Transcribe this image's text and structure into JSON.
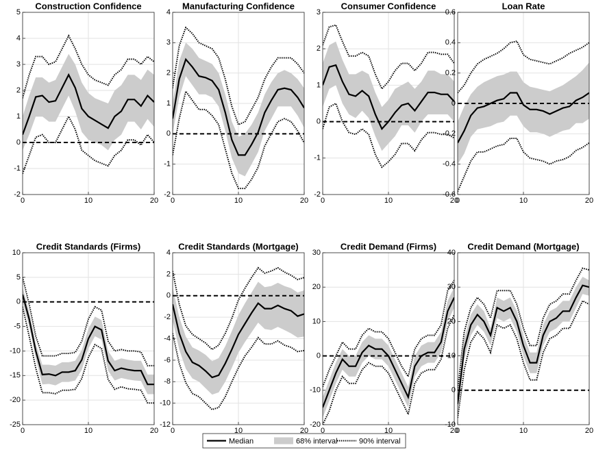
{
  "chart_data": [
    {
      "type": "line",
      "title": "Construction Confidence",
      "x": [
        0,
        1,
        2,
        3,
        4,
        5,
        6,
        7,
        8,
        9,
        10,
        11,
        12,
        13,
        14,
        15,
        16,
        17,
        18,
        19,
        20
      ],
      "xlim": [
        0,
        20
      ],
      "xticks": [
        0,
        10,
        20
      ],
      "ylim": [
        -2,
        5
      ],
      "yticks": [
        -2,
        -1,
        0,
        1,
        2,
        3,
        4,
        5
      ],
      "grid": true,
      "zero_line": 0,
      "median": [
        0.3,
        1.0,
        1.75,
        1.8,
        1.55,
        1.6,
        2.1,
        2.6,
        2.1,
        1.3,
        1.0,
        0.85,
        0.7,
        0.55,
        1.0,
        1.2,
        1.65,
        1.65,
        1.4,
        1.8,
        1.55
      ],
      "band68": {
        "lower": [
          -0.3,
          0.3,
          1.0,
          1.0,
          0.8,
          0.8,
          1.3,
          1.8,
          1.2,
          0.4,
          0.1,
          0.0,
          -0.1,
          -0.3,
          0.1,
          0.3,
          0.8,
          0.8,
          0.5,
          0.9,
          0.6
        ],
        "upper": [
          1.0,
          1.8,
          2.5,
          2.5,
          2.3,
          2.4,
          2.9,
          3.4,
          3.0,
          2.3,
          1.9,
          1.7,
          1.6,
          1.5,
          2.0,
          2.2,
          2.6,
          2.6,
          2.4,
          2.8,
          2.6
        ]
      },
      "band90": {
        "lower": [
          -1.2,
          -0.5,
          0.2,
          0.3,
          0.0,
          0.0,
          0.5,
          1.0,
          0.5,
          -0.3,
          -0.5,
          -0.7,
          -0.8,
          -0.9,
          -0.5,
          -0.3,
          0.1,
          0.1,
          -0.1,
          0.3,
          0.0
        ],
        "upper": [
          1.7,
          2.6,
          3.3,
          3.3,
          3.0,
          3.1,
          3.6,
          4.1,
          3.6,
          3.0,
          2.6,
          2.4,
          2.3,
          2.2,
          2.6,
          2.8,
          3.2,
          3.2,
          3.0,
          3.3,
          3.1
        ]
      }
    },
    {
      "type": "line",
      "title": "Manufacturing Confidence",
      "x": [
        0,
        1,
        2,
        3,
        4,
        5,
        6,
        7,
        8,
        9,
        10,
        11,
        12,
        13,
        14,
        15,
        16,
        17,
        18,
        19,
        20
      ],
      "xlim": [
        0,
        20
      ],
      "xticks": [
        0,
        10,
        20
      ],
      "ylim": [
        -2,
        4
      ],
      "yticks": [
        -2,
        -1,
        0,
        1,
        2,
        3,
        4
      ],
      "grid": true,
      "zero_line": 0,
      "median": [
        0.5,
        1.8,
        2.45,
        2.2,
        1.9,
        1.85,
        1.75,
        1.45,
        0.7,
        -0.2,
        -0.7,
        -0.7,
        -0.35,
        0.05,
        0.7,
        1.1,
        1.45,
        1.5,
        1.45,
        1.2,
        0.85
      ],
      "band68": {
        "lower": [
          0.0,
          1.2,
          1.9,
          1.6,
          1.3,
          1.3,
          1.2,
          0.9,
          0.1,
          -0.8,
          -1.3,
          -1.4,
          -1.0,
          -0.6,
          0.1,
          0.5,
          0.9,
          0.9,
          0.9,
          0.6,
          0.2
        ],
        "upper": [
          1.0,
          2.4,
          3.0,
          2.8,
          2.5,
          2.4,
          2.3,
          2.0,
          1.3,
          0.4,
          -0.1,
          0.0,
          0.3,
          0.7,
          1.3,
          1.7,
          2.0,
          2.1,
          2.0,
          1.8,
          1.5
        ]
      },
      "band90": {
        "lower": [
          -0.7,
          0.5,
          1.4,
          1.1,
          0.8,
          0.8,
          0.6,
          0.3,
          -0.5,
          -1.3,
          -1.8,
          -1.8,
          -1.5,
          -1.1,
          -0.4,
          0.0,
          0.4,
          0.5,
          0.4,
          0.1,
          -0.3
        ],
        "upper": [
          1.5,
          2.9,
          3.5,
          3.3,
          3.0,
          2.9,
          2.8,
          2.5,
          1.8,
          0.9,
          0.3,
          0.4,
          0.8,
          1.2,
          1.8,
          2.2,
          2.5,
          2.5,
          2.5,
          2.3,
          2.0
        ]
      }
    },
    {
      "type": "line",
      "title": "Consumer Confidence",
      "x": [
        0,
        1,
        2,
        3,
        4,
        5,
        6,
        7,
        8,
        9,
        10,
        11,
        12,
        13,
        14,
        15,
        16,
        17,
        18,
        19,
        20
      ],
      "xlim": [
        0,
        20
      ],
      "xticks": [
        0,
        10,
        20
      ],
      "ylim": [
        -2,
        3
      ],
      "yticks": [
        -2,
        -1,
        0,
        1,
        2,
        3
      ],
      "grid": true,
      "zero_line": 0,
      "median": [
        1.0,
        1.5,
        1.55,
        1.1,
        0.75,
        0.7,
        0.85,
        0.7,
        0.2,
        -0.2,
        0.0,
        0.25,
        0.45,
        0.5,
        0.3,
        0.55,
        0.8,
        0.8,
        0.75,
        0.75,
        0.55
      ],
      "band68": {
        "lower": [
          0.4,
          0.9,
          1.0,
          0.5,
          0.2,
          0.1,
          0.3,
          0.1,
          -0.4,
          -0.8,
          -0.6,
          -0.4,
          -0.1,
          -0.1,
          -0.3,
          0.0,
          0.2,
          0.2,
          0.2,
          0.2,
          0.0
        ],
        "upper": [
          1.6,
          2.1,
          2.2,
          1.7,
          1.3,
          1.3,
          1.4,
          1.3,
          0.8,
          0.4,
          0.6,
          0.9,
          1.0,
          1.1,
          0.9,
          1.1,
          1.4,
          1.4,
          1.3,
          1.3,
          1.1
        ]
      },
      "band90": {
        "lower": [
          -0.2,
          0.4,
          0.5,
          0.0,
          -0.3,
          -0.35,
          -0.2,
          -0.35,
          -0.9,
          -1.25,
          -1.1,
          -0.9,
          -0.6,
          -0.6,
          -0.8,
          -0.5,
          -0.3,
          -0.3,
          -0.35,
          -0.35,
          -0.45
        ],
        "upper": [
          2.1,
          2.6,
          2.65,
          2.2,
          1.8,
          1.8,
          1.9,
          1.8,
          1.3,
          0.9,
          1.1,
          1.4,
          1.6,
          1.6,
          1.4,
          1.6,
          1.9,
          1.9,
          1.85,
          1.85,
          1.6
        ]
      }
    },
    {
      "type": "line",
      "title": "Loan Rate",
      "x": [
        0,
        1,
        2,
        3,
        4,
        5,
        6,
        7,
        8,
        9,
        10,
        11,
        12,
        13,
        14,
        15,
        16,
        17,
        18,
        19,
        20
      ],
      "xlim": [
        0,
        20
      ],
      "xticks": [
        0,
        10,
        20
      ],
      "ylim": [
        -0.6,
        0.6
      ],
      "yticks": [
        -0.6,
        -0.4,
        -0.2,
        0,
        0.2,
        0.4,
        0.6
      ],
      "grid": true,
      "zero_line": 0,
      "median": [
        -0.26,
        -0.18,
        -0.08,
        -0.03,
        -0.02,
        0.0,
        0.02,
        0.03,
        0.07,
        0.07,
        -0.01,
        -0.04,
        -0.04,
        -0.05,
        -0.07,
        -0.05,
        -0.03,
        -0.02,
        0.02,
        0.04,
        0.07
      ],
      "band68": {
        "lower": [
          -0.4,
          -0.33,
          -0.22,
          -0.17,
          -0.16,
          -0.15,
          -0.13,
          -0.12,
          -0.08,
          -0.08,
          -0.15,
          -0.19,
          -0.19,
          -0.2,
          -0.22,
          -0.2,
          -0.18,
          -0.17,
          -0.13,
          -0.13,
          -0.1
        ],
        "upper": [
          -0.12,
          -0.02,
          0.06,
          0.11,
          0.14,
          0.16,
          0.18,
          0.19,
          0.21,
          0.21,
          0.14,
          0.11,
          0.1,
          0.09,
          0.08,
          0.1,
          0.12,
          0.15,
          0.18,
          0.22,
          0.27
        ]
      },
      "band90": {
        "lower": [
          -0.58,
          -0.48,
          -0.38,
          -0.32,
          -0.32,
          -0.3,
          -0.28,
          -0.27,
          -0.23,
          -0.23,
          -0.32,
          -0.36,
          -0.37,
          -0.38,
          -0.4,
          -0.38,
          -0.37,
          -0.35,
          -0.31,
          -0.29,
          -0.26
        ],
        "upper": [
          0.07,
          0.12,
          0.2,
          0.26,
          0.29,
          0.31,
          0.33,
          0.36,
          0.4,
          0.41,
          0.32,
          0.29,
          0.28,
          0.27,
          0.26,
          0.28,
          0.3,
          0.33,
          0.35,
          0.37,
          0.4
        ]
      }
    },
    {
      "type": "line",
      "title": "Credit Standards (Firms)",
      "x": [
        0,
        1,
        2,
        3,
        4,
        5,
        6,
        7,
        8,
        9,
        10,
        11,
        12,
        13,
        14,
        15,
        16,
        17,
        18,
        19,
        20
      ],
      "xlim": [
        0,
        20
      ],
      "xticks": [
        0,
        10,
        20
      ],
      "ylim": [
        -25,
        10
      ],
      "yticks": [
        -25,
        -20,
        -15,
        -10,
        -5,
        0,
        5,
        10
      ],
      "grid": true,
      "zero_line": 0,
      "median": [
        1.5,
        -3.5,
        -10,
        -14.8,
        -14.7,
        -15,
        -14.3,
        -14.3,
        -14,
        -11.8,
        -7.5,
        -5,
        -5.7,
        -12,
        -14,
        -13.5,
        -13.8,
        -14,
        -14,
        -16.8,
        -16.8
      ],
      "band68": {
        "lower": [
          0,
          -5,
          -11.5,
          -16.8,
          -16.7,
          -17,
          -16.3,
          -16.3,
          -16,
          -13.8,
          -9.5,
          -7,
          -7.7,
          -14,
          -16,
          -15.5,
          -15.8,
          -16,
          -16.1,
          -18.8,
          -18.8
        ],
        "upper": [
          3,
          -2,
          -8.5,
          -12.8,
          -12.8,
          -13,
          -12.3,
          -12.3,
          -12,
          -9.8,
          -5.5,
          -3,
          -3.7,
          -10,
          -12,
          -11.5,
          -11.8,
          -12,
          -12,
          -14.8,
          -14.8
        ]
      },
      "band90": {
        "lower": [
          -1,
          -7,
          -13.5,
          -18.5,
          -18.5,
          -18.7,
          -18,
          -18,
          -17.8,
          -15.6,
          -11.3,
          -8.7,
          -9.5,
          -15.8,
          -17.8,
          -17.3,
          -17.7,
          -17.8,
          -18,
          -20.6,
          -20.6
        ],
        "upper": [
          5,
          -0.5,
          -7,
          -11,
          -11,
          -11,
          -10.5,
          -10.5,
          -10.3,
          -8,
          -3.5,
          -1,
          -1.7,
          -8,
          -10,
          -9.7,
          -10,
          -10,
          -10.2,
          -13,
          -13
        ]
      }
    },
    {
      "type": "line",
      "title": "Credit Standards (Mortgage)",
      "x": [
        0,
        1,
        2,
        3,
        4,
        5,
        6,
        7,
        8,
        9,
        10,
        11,
        12,
        13,
        14,
        15,
        16,
        17,
        18,
        19,
        20
      ],
      "xlim": [
        0,
        20
      ],
      "xticks": [
        0,
        10,
        20
      ],
      "ylim": [
        -12,
        4
      ],
      "yticks": [
        -12,
        -10,
        -8,
        -6,
        -4,
        -2,
        0,
        2,
        4
      ],
      "grid": true,
      "zero_line": 0,
      "median": [
        -0.8,
        -3.5,
        -5.2,
        -6.2,
        -6.5,
        -7,
        -7.6,
        -7.4,
        -6.3,
        -5,
        -3.6,
        -2.6,
        -1.6,
        -0.7,
        -1.2,
        -1.2,
        -0.9,
        -1.2,
        -1.4,
        -1.9,
        -1.7
      ],
      "band68": {
        "lower": [
          -2.3,
          -5,
          -6.8,
          -7.7,
          -8,
          -8.6,
          -9.2,
          -9,
          -8,
          -6.7,
          -5.3,
          -4.3,
          -3.4,
          -2.5,
          -3.1,
          -3.2,
          -2.9,
          -3.2,
          -3.5,
          -3.9,
          -3.8
        ],
        "upper": [
          0.8,
          -2,
          -3.8,
          -4.8,
          -5.1,
          -5.5,
          -6.1,
          -5.8,
          -4.7,
          -3.3,
          -1.8,
          -0.7,
          0.3,
          1.3,
          0.8,
          0.9,
          1.2,
          0.9,
          0.7,
          0.3,
          0.5
        ]
      },
      "band90": {
        "lower": [
          -3.5,
          -6.3,
          -8.1,
          -9.1,
          -9.4,
          -10,
          -10.6,
          -10.4,
          -9.4,
          -8,
          -6.7,
          -5.6,
          -4.8,
          -3.9,
          -4.5,
          -4.5,
          -4.2,
          -4.6,
          -4.8,
          -5.2,
          -5.1
        ],
        "upper": [
          2.3,
          -0.8,
          -2.8,
          -3.6,
          -4,
          -4.4,
          -5,
          -4.6,
          -3.5,
          -2.1,
          -0.4,
          0.7,
          1.7,
          2.6,
          2.1,
          2.3,
          2.6,
          2.2,
          1.9,
          1.5,
          1.7
        ]
      }
    },
    {
      "type": "line",
      "title": "Credit Demand (Firms)",
      "x": [
        0,
        1,
        2,
        3,
        4,
        5,
        6,
        7,
        8,
        9,
        10,
        11,
        12,
        13,
        14,
        15,
        16,
        17,
        18,
        19,
        20
      ],
      "xlim": [
        0,
        20
      ],
      "xticks": [
        0,
        10,
        20
      ],
      "ylim": [
        -20,
        30
      ],
      "yticks": [
        -20,
        -10,
        0,
        10,
        20,
        30
      ],
      "grid": true,
      "zero_line": 0,
      "median": [
        -15,
        -10,
        -5,
        -1,
        -3,
        -3,
        1,
        3,
        2,
        2,
        0,
        -4,
        -8,
        -12,
        -3,
        0,
        1,
        1,
        4,
        13,
        17
      ],
      "band68": {
        "lower": [
          -18,
          -13,
          -8,
          -4,
          -6,
          -6,
          -2,
          0,
          -1,
          -1,
          -3,
          -7,
          -11,
          -15,
          -6,
          -3,
          -2,
          -2,
          1,
          10,
          14
        ],
        "upper": [
          -12,
          -7,
          -2,
          2,
          0,
          0,
          4,
          6,
          5,
          5,
          3,
          -1,
          -5,
          -9,
          0,
          3,
          4,
          4,
          7,
          16,
          20
        ]
      },
      "band90": {
        "lower": [
          -20,
          -16,
          -10,
          -6,
          -8,
          -8,
          -4,
          -2,
          -3,
          -3,
          -5,
          -9,
          -13,
          -17,
          -8,
          -5,
          -4,
          -4,
          -1,
          8,
          12
        ],
        "upper": [
          -9,
          -4,
          0,
          4,
          2,
          2,
          6,
          8,
          7,
          7,
          5,
          1,
          -3,
          -6,
          2,
          5,
          6,
          6,
          9,
          19,
          22
        ]
      }
    },
    {
      "type": "line",
      "title": "Credit Demand (Mortgage)",
      "x": [
        0,
        1,
        2,
        3,
        4,
        5,
        6,
        7,
        8,
        9,
        10,
        11,
        12,
        13,
        14,
        15,
        16,
        17,
        18,
        19,
        20
      ],
      "xlim": [
        0,
        20
      ],
      "xticks": [
        0,
        10,
        20
      ],
      "ylim": [
        -10,
        40
      ],
      "yticks": [
        -10,
        0,
        10,
        20,
        30,
        40
      ],
      "grid": true,
      "zero_line": 0,
      "median": [
        -4,
        12,
        19,
        22,
        20,
        16,
        24,
        23,
        24,
        20,
        13,
        8,
        8,
        16,
        20,
        21,
        23,
        23,
        27,
        30.5,
        30
      ],
      "band68": {
        "lower": [
          -6,
          9,
          16,
          19,
          17,
          13,
          21,
          20,
          21,
          17,
          10,
          5,
          5,
          13,
          17,
          18,
          20,
          20,
          24,
          28,
          27.5
        ],
        "upper": [
          -2,
          15,
          22,
          25,
          23,
          18,
          27,
          26,
          27,
          23,
          16,
          11,
          11,
          19,
          23,
          24,
          26,
          26,
          30,
          33,
          32
        ]
      },
      "band90": {
        "lower": [
          -8,
          6,
          14,
          17,
          15,
          11,
          19,
          18,
          19,
          15,
          8,
          3,
          3,
          11,
          15,
          16,
          18,
          18,
          22,
          26,
          25
        ],
        "upper": [
          0,
          17,
          24,
          27,
          25,
          21,
          29,
          29,
          29,
          25,
          18,
          13,
          13,
          21,
          25,
          26,
          28,
          28,
          32,
          35.5,
          35
        ]
      }
    }
  ],
  "legend": {
    "items": [
      "Median",
      "68% interval",
      "90% interval"
    ]
  }
}
